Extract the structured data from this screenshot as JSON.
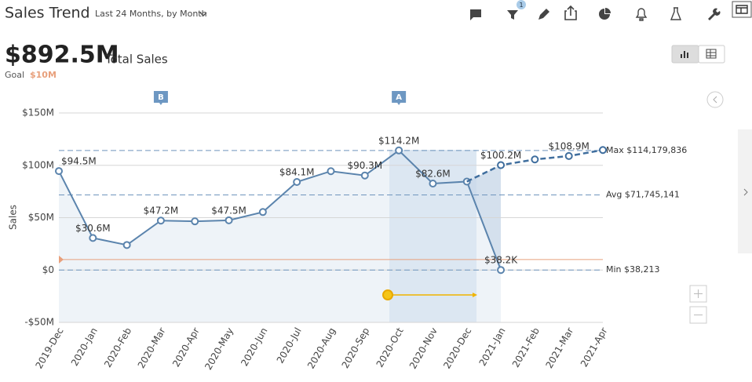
{
  "header": {
    "title": "Sales Trend",
    "period": "Last 24 Months, by Month",
    "filter_count": 1,
    "total": "$892.5M",
    "total_label": "Total Sales",
    "goal_label": "Goal",
    "goal": "$10M"
  },
  "chart_data": {
    "type": "line",
    "y_label": "Sales",
    "categories": [
      "2019-Dec",
      "2020-Jan",
      "2020-Feb",
      "2020-Mar",
      "2020-Apr",
      "2020-May",
      "2020-Jun",
      "2020-Jul",
      "2020-Aug",
      "2020-Sep",
      "2020-Oct",
      "2020-Nov",
      "2020-Dec",
      "2021-Jan",
      "2021-Feb",
      "2021-Mar",
      "2021-Apr"
    ],
    "ylim": [
      -50,
      150
    ],
    "yticks": [
      {
        "value": -50,
        "label": "-$50M"
      },
      {
        "value": 0,
        "label": "$0"
      },
      {
        "value": 50,
        "label": "$50M"
      },
      {
        "value": 100,
        "label": "$100M"
      },
      {
        "value": 150,
        "label": "$150M"
      }
    ],
    "grid": true,
    "series": [
      {
        "color": "#5b84ad",
        "dashed": false,
        "values": [
          94.5,
          30.6,
          23.9,
          47.2,
          46.5,
          47.5,
          55.4,
          84.1,
          94.4,
          90.3,
          114.2,
          82.6,
          84.5,
          0.0382,
          null,
          null,
          null
        ],
        "value_labels": [
          "$94.5M",
          "$30.6M",
          null,
          "$47.2M",
          null,
          "$47.5M",
          null,
          "$84.1M",
          null,
          "$90.3M",
          "$114.2M",
          "$82.6M",
          null,
          "$38.2K",
          null,
          null,
          null
        ]
      },
      {
        "color": "#3f6e9e",
        "dashed": true,
        "values": [
          null,
          null,
          null,
          null,
          null,
          null,
          null,
          null,
          null,
          null,
          null,
          null,
          84.5,
          100.2,
          105.6,
          108.9,
          114.6
        ],
        "value_labels": [
          null,
          null,
          null,
          null,
          null,
          null,
          null,
          null,
          null,
          null,
          null,
          null,
          null,
          "$100.2M",
          null,
          "$108.9M",
          null
        ]
      }
    ],
    "reference_lines": [
      {
        "value": 114.179836,
        "label": "Max $114,179,836"
      },
      {
        "value": 71.745141,
        "label": "Avg $71,745,141"
      },
      {
        "value": 0.038213,
        "label": "Min $38,213"
      }
    ],
    "goal_line": {
      "value": 10,
      "color": "#e8a07c"
    },
    "annotations": [
      {
        "label": "B",
        "category": "2020-Mar"
      },
      {
        "label": "A",
        "category": "2020-Oct"
      }
    ]
  }
}
